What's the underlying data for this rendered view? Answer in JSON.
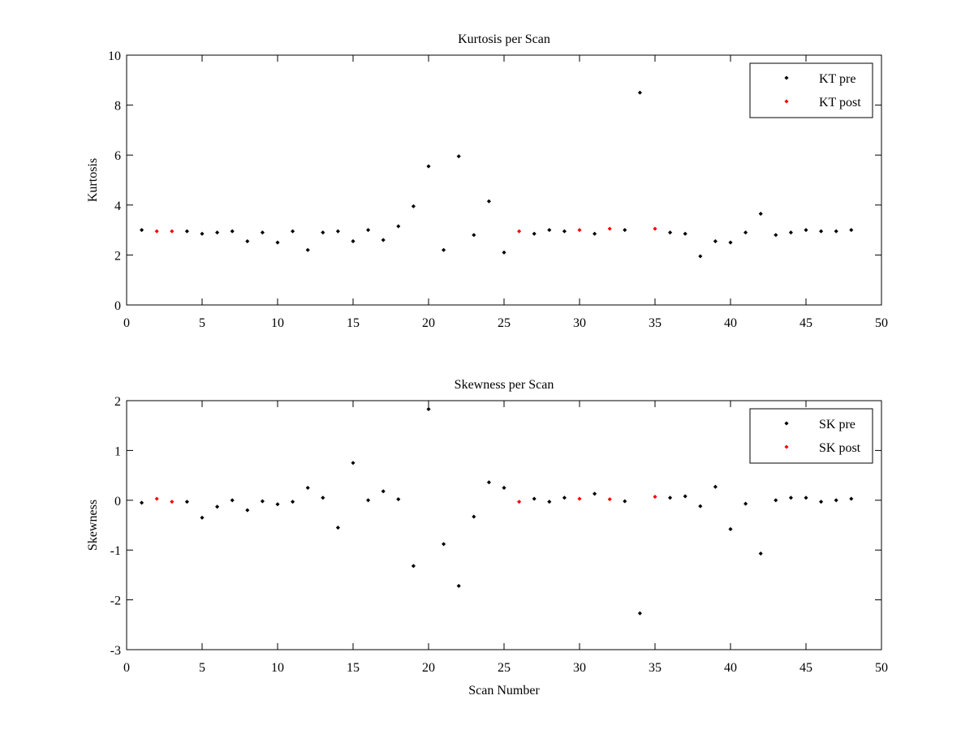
{
  "chart_data": [
    {
      "type": "scatter",
      "title": "Kurtosis per Scan",
      "xlabel": "",
      "ylabel": "Kurtosis",
      "xlim": [
        0,
        50
      ],
      "ylim": [
        0,
        10
      ],
      "xticks": [
        0,
        5,
        10,
        15,
        20,
        25,
        30,
        35,
        40,
        45,
        50
      ],
      "yticks": [
        0,
        2,
        4,
        6,
        8,
        10
      ],
      "legend_position": "top-right",
      "series": [
        {
          "name": "KT pre",
          "color": "#000000",
          "x": [
            1,
            4,
            5,
            6,
            7,
            8,
            9,
            10,
            11,
            12,
            13,
            14,
            15,
            16,
            17,
            18,
            19,
            20,
            21,
            22,
            23,
            24,
            25,
            27,
            28,
            29,
            31,
            33,
            34,
            36,
            37,
            38,
            39,
            40,
            41,
            42,
            43,
            44,
            45,
            46,
            47,
            48
          ],
          "y": [
            3.0,
            2.95,
            2.85,
            2.9,
            2.95,
            2.55,
            2.9,
            2.5,
            2.95,
            2.2,
            2.9,
            2.95,
            2.55,
            3.0,
            2.6,
            3.15,
            3.95,
            5.55,
            2.2,
            5.95,
            2.8,
            4.15,
            2.1,
            2.85,
            3.0,
            2.95,
            2.85,
            3.0,
            8.5,
            2.9,
            2.85,
            1.95,
            2.55,
            2.5,
            2.9,
            3.65,
            2.8,
            2.9,
            3.0,
            2.95,
            2.95,
            3.0
          ]
        },
        {
          "name": "KT post",
          "color": "#ff0000",
          "x": [
            2,
            3,
            26,
            30,
            32,
            35
          ],
          "y": [
            2.95,
            2.95,
            2.95,
            3.0,
            3.05,
            3.05
          ]
        }
      ]
    },
    {
      "type": "scatter",
      "title": "Skewness per Scan",
      "xlabel": "Scan Number",
      "ylabel": "Skewness",
      "xlim": [
        0,
        50
      ],
      "ylim": [
        -3,
        2
      ],
      "xticks": [
        0,
        5,
        10,
        15,
        20,
        25,
        30,
        35,
        40,
        45,
        50
      ],
      "yticks": [
        -3,
        -2,
        -1,
        0,
        1,
        2
      ],
      "legend_position": "top-right",
      "series": [
        {
          "name": "SK pre",
          "color": "#000000",
          "x": [
            1,
            4,
            5,
            6,
            7,
            8,
            9,
            10,
            11,
            12,
            13,
            14,
            15,
            16,
            17,
            18,
            19,
            20,
            21,
            22,
            23,
            24,
            25,
            27,
            28,
            29,
            31,
            33,
            34,
            36,
            37,
            38,
            39,
            40,
            41,
            42,
            43,
            44,
            45,
            46,
            47,
            48
          ],
          "y": [
            -0.05,
            -0.03,
            -0.35,
            -0.13,
            0.0,
            -0.2,
            -0.02,
            -0.08,
            -0.03,
            0.25,
            0.05,
            -0.55,
            0.75,
            0.0,
            0.18,
            0.02,
            -1.32,
            1.83,
            -0.88,
            -1.72,
            -0.33,
            0.36,
            0.25,
            0.03,
            -0.03,
            0.05,
            0.13,
            -0.02,
            -2.27,
            0.05,
            0.08,
            -0.12,
            0.27,
            -0.58,
            -0.07,
            -1.07,
            0.0,
            0.05,
            0.05,
            -0.03,
            0.0,
            0.03
          ]
        },
        {
          "name": "SK post",
          "color": "#ff0000",
          "x": [
            2,
            3,
            26,
            30,
            32,
            35
          ],
          "y": [
            0.03,
            -0.03,
            -0.03,
            0.03,
            0.02,
            0.07
          ]
        }
      ]
    }
  ]
}
